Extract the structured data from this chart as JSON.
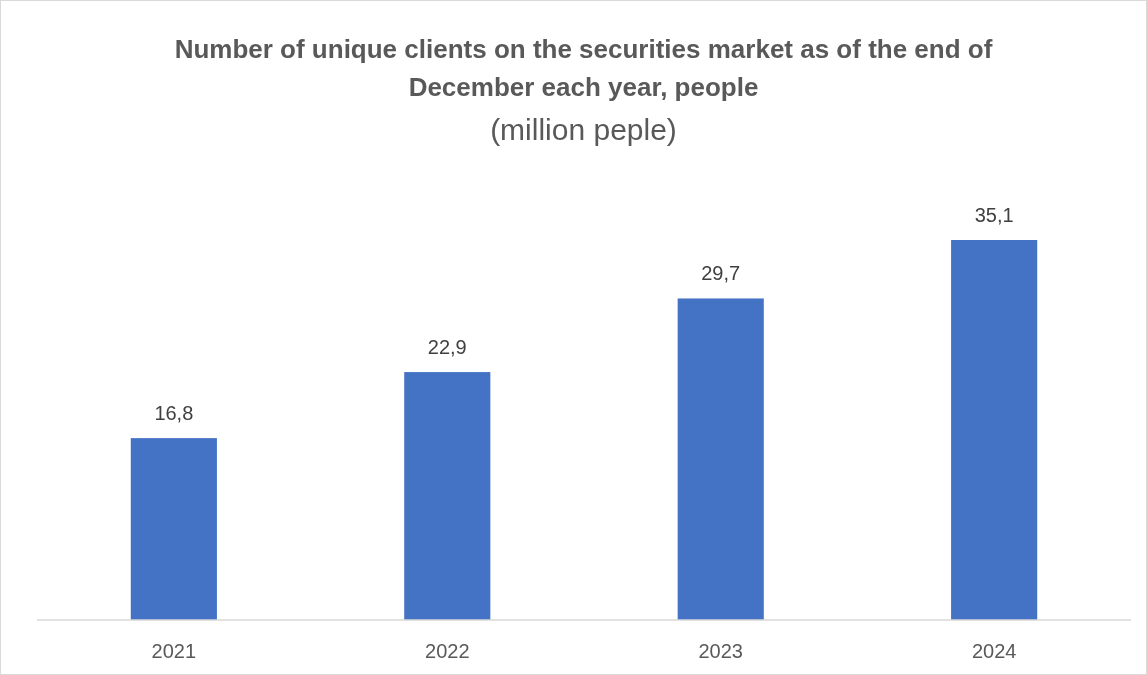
{
  "chart_data": {
    "type": "bar",
    "title": "Number of unique clients on the securities market as of the end of December each year, people",
    "subtitle": "(million peple)",
    "categories": [
      "2021",
      "2022",
      "2023",
      "2024"
    ],
    "values": [
      16.8,
      22.9,
      29.7,
      35.1
    ],
    "color": "#4472c4",
    "value_labels": [
      "16,8",
      "22,9",
      "29,7",
      "35,1"
    ]
  }
}
